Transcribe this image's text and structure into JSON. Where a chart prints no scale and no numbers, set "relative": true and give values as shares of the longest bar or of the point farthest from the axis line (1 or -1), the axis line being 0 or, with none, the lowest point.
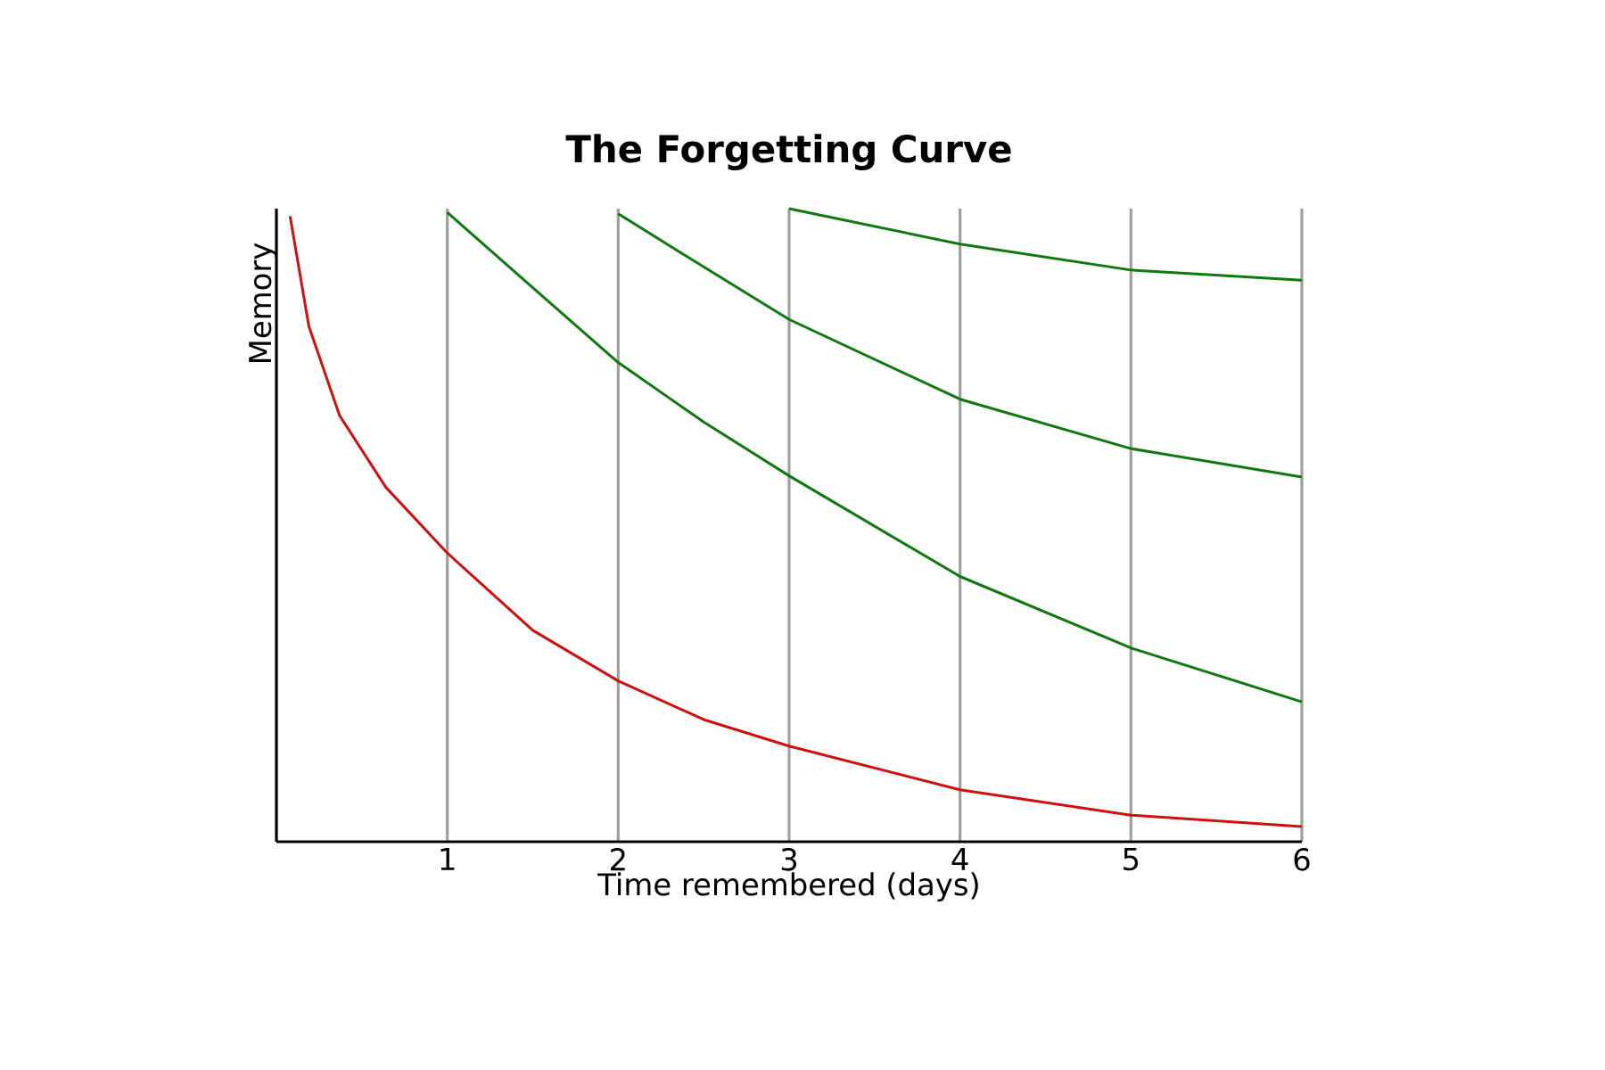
{
  "chart_data": {
    "type": "line",
    "title": "The Forgetting Curve",
    "xlabel": "Time remembered (days)",
    "ylabel": "Memory",
    "relative": true,
    "xlim": [
      0,
      6
    ],
    "xticks": [
      1,
      2,
      3,
      4,
      5,
      6
    ],
    "grid": "x",
    "series": [
      {
        "color": "#cc1111",
        "x": [
          0.08,
          0.19,
          0.37,
          0.64,
          1,
          1.5,
          2,
          2.5,
          3,
          4,
          5,
          6
        ],
        "values": [
          0.988,
          0.814,
          0.673,
          0.56,
          0.456,
          0.334,
          0.254,
          0.193,
          0.151,
          0.082,
          0.042,
          0.024
        ]
      },
      {
        "color": "#117711",
        "x": [
          1,
          1.5,
          2,
          2.5,
          3,
          4,
          5,
          6
        ],
        "values": [
          0.994,
          0.875,
          0.757,
          0.663,
          0.578,
          0.419,
          0.306,
          0.221
        ]
      },
      {
        "color": "#117711",
        "x": [
          2,
          2.5,
          3,
          4,
          5,
          6
        ],
        "values": [
          0.992,
          0.908,
          0.825,
          0.699,
          0.621,
          0.576
        ]
      },
      {
        "color": "#117711",
        "x": [
          3,
          4,
          5,
          6
        ],
        "values": [
          1.0,
          0.944,
          0.903,
          0.887
        ]
      }
    ]
  }
}
